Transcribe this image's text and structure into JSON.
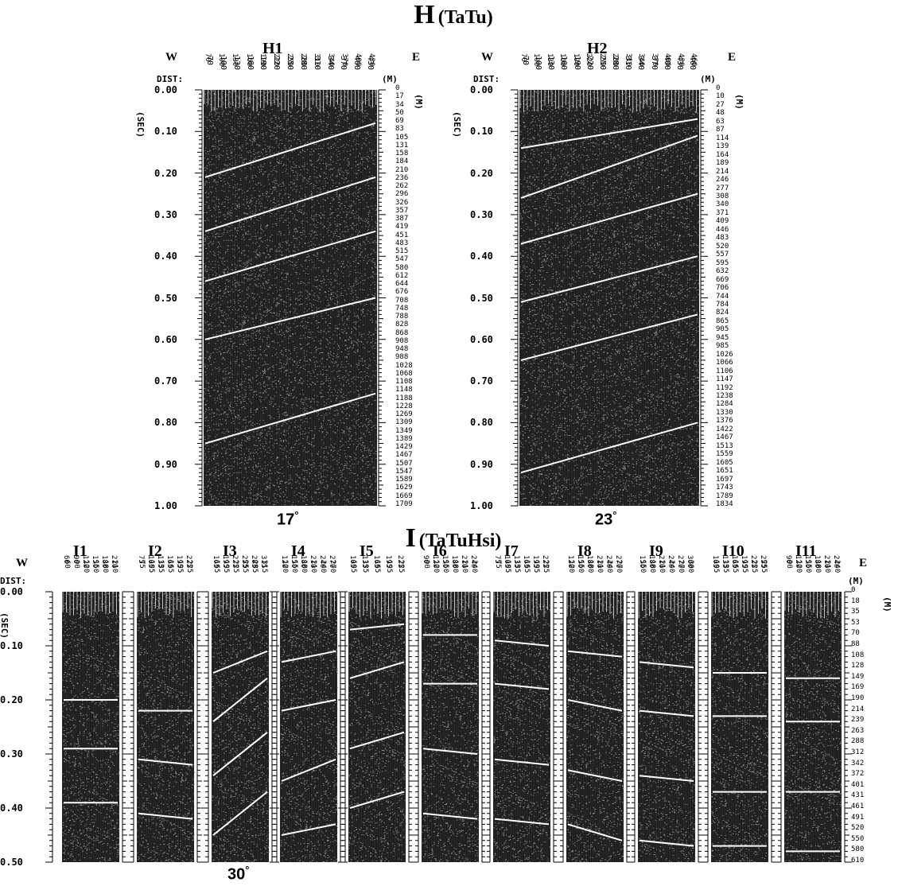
{
  "top": {
    "title": "H",
    "subtitle": "(TaTu)",
    "panels": [
      {
        "id": "H1",
        "label": "H1",
        "dist": [
          "70",
          "100",
          "130",
          "160",
          "190",
          "220",
          "250",
          "280",
          "310",
          "340",
          "370",
          "400",
          "430"
        ],
        "time_ticks": [
          "0.00",
          "0.10",
          "0.20",
          "0.30",
          "0.40",
          "0.50",
          "0.60",
          "0.70",
          "0.80",
          "0.90",
          "1.00"
        ],
        "depths": [
          "0",
          "17",
          "34",
          "50",
          "69",
          "83",
          "105",
          "131",
          "158",
          "184",
          "210",
          "236",
          "262",
          "296",
          "326",
          "357",
          "387",
          "419",
          "451",
          "483",
          "515",
          "547",
          "580",
          "612",
          "644",
          "676",
          "708",
          "748",
          "788",
          "828",
          "868",
          "908",
          "948",
          "988",
          "1028",
          "1068",
          "1108",
          "1148",
          "1188",
          "1228",
          "1269",
          "1309",
          "1349",
          "1389",
          "1429",
          "1467",
          "1507",
          "1547",
          "1589",
          "1629",
          "1669",
          "1709"
        ],
        "reflectors": [
          [
            0.21,
            0.08
          ],
          [
            0.34,
            0.21
          ],
          [
            0.46,
            0.34
          ],
          [
            0.6,
            0.5
          ],
          [
            0.85,
            0.73
          ]
        ],
        "angle": "17"
      },
      {
        "id": "H2",
        "label": "H2",
        "dist": [
          "70",
          "100",
          "130",
          "160",
          "190",
          "220",
          "250",
          "280",
          "310",
          "340",
          "370",
          "400",
          "430",
          "460"
        ],
        "time_ticks": [
          "0.00",
          "0.10",
          "0.20",
          "0.30",
          "0.40",
          "0.50",
          "0.60",
          "0.70",
          "0.80",
          "0.90",
          "1.00"
        ],
        "depths": [
          "0",
          "10",
          "27",
          "48",
          "63",
          "87",
          "114",
          "139",
          "164",
          "189",
          "214",
          "246",
          "277",
          "308",
          "340",
          "371",
          "409",
          "446",
          "483",
          "520",
          "557",
          "595",
          "632",
          "669",
          "706",
          "744",
          "784",
          "824",
          "865",
          "905",
          "945",
          "985",
          "1026",
          "1066",
          "1106",
          "1147",
          "1192",
          "1238",
          "1284",
          "1330",
          "1376",
          "1422",
          "1467",
          "1513",
          "1559",
          "1605",
          "1651",
          "1697",
          "1743",
          "1789",
          "1834"
        ],
        "reflectors": [
          [
            0.14,
            0.07
          ],
          [
            0.26,
            0.11
          ],
          [
            0.37,
            0.25
          ],
          [
            0.51,
            0.4
          ],
          [
            0.65,
            0.54
          ],
          [
            0.92,
            0.8
          ]
        ],
        "angle": "23"
      }
    ]
  },
  "bottom": {
    "title": "I",
    "subtitle": "(TaTuHsi)",
    "time_ticks": [
      "0.00",
      "0.10",
      "0.20",
      "0.30",
      "0.40",
      "0.50"
    ],
    "depths": [
      "0",
      "18",
      "35",
      "53",
      "70",
      "88",
      "108",
      "128",
      "149",
      "169",
      "190",
      "214",
      "239",
      "263",
      "288",
      "312",
      "342",
      "372",
      "401",
      "431",
      "461",
      "491",
      "520",
      "550",
      "580",
      "610"
    ],
    "angle": "30",
    "panels": [
      {
        "label": "I1",
        "dist": [
          "60",
          "90",
          "120",
          "150",
          "180",
          "210"
        ],
        "reflectors": [
          [
            0.2,
            0.2
          ],
          [
            0.29,
            0.29
          ],
          [
            0.39,
            0.39
          ]
        ]
      },
      {
        "label": "I2",
        "dist": [
          "75",
          "105",
          "135",
          "165",
          "195",
          "225"
        ],
        "reflectors": [
          [
            0.22,
            0.22
          ],
          [
            0.31,
            0.32
          ],
          [
            0.41,
            0.42
          ]
        ]
      },
      {
        "label": "I3",
        "dist": [
          "165",
          "195",
          "225",
          "255",
          "285",
          "315"
        ],
        "reflectors": [
          [
            0.15,
            0.11
          ],
          [
            0.24,
            0.16
          ],
          [
            0.34,
            0.26
          ],
          [
            0.45,
            0.37
          ]
        ]
      },
      {
        "label": "I4",
        "dist": [
          "120",
          "150",
          "180",
          "210",
          "240",
          "270"
        ],
        "reflectors": [
          [
            0.13,
            0.11
          ],
          [
            0.22,
            0.2
          ],
          [
            0.35,
            0.31
          ],
          [
            0.45,
            0.43
          ]
        ]
      },
      {
        "label": "I5",
        "dist": [
          "105",
          "135",
          "165",
          "195",
          "225"
        ],
        "reflectors": [
          [
            0.07,
            0.06
          ],
          [
            0.16,
            0.13
          ],
          [
            0.29,
            0.26
          ],
          [
            0.4,
            0.37
          ]
        ]
      },
      {
        "label": "I6",
        "dist": [
          "90",
          "120",
          "150",
          "180",
          "210",
          "240"
        ],
        "reflectors": [
          [
            0.08,
            0.08
          ],
          [
            0.17,
            0.17
          ],
          [
            0.29,
            0.3
          ],
          [
            0.41,
            0.42
          ]
        ]
      },
      {
        "label": "I7",
        "dist": [
          "75",
          "105",
          "135",
          "165",
          "195",
          "225"
        ],
        "reflectors": [
          [
            0.09,
            0.1
          ],
          [
            0.17,
            0.18
          ],
          [
            0.31,
            0.32
          ],
          [
            0.42,
            0.43
          ]
        ]
      },
      {
        "label": "I8",
        "dist": [
          "120",
          "150",
          "180",
          "210",
          "240",
          "270"
        ],
        "reflectors": [
          [
            0.11,
            0.12
          ],
          [
            0.2,
            0.22
          ],
          [
            0.33,
            0.35
          ],
          [
            0.43,
            0.46
          ]
        ]
      },
      {
        "label": "I9",
        "dist": [
          "150",
          "180",
          "210",
          "240",
          "270",
          "300"
        ],
        "reflectors": [
          [
            0.13,
            0.14
          ],
          [
            0.22,
            0.23
          ],
          [
            0.34,
            0.35
          ],
          [
            0.46,
            0.47
          ]
        ]
      },
      {
        "label": "I10",
        "dist": [
          "105",
          "135",
          "165",
          "195",
          "225",
          "255"
        ],
        "reflectors": [
          [
            0.15,
            0.15
          ],
          [
            0.23,
            0.23
          ],
          [
            0.37,
            0.37
          ],
          [
            0.47,
            0.47
          ]
        ]
      },
      {
        "label": "I11",
        "dist": [
          "90",
          "120",
          "150",
          "180",
          "210",
          "240"
        ],
        "reflectors": [
          [
            0.16,
            0.16
          ],
          [
            0.24,
            0.24
          ],
          [
            0.37,
            0.37
          ],
          [
            0.48,
            0.48
          ]
        ]
      }
    ]
  },
  "labels": {
    "west": "W",
    "east": "E",
    "dist": "DIST:",
    "unit_m": "(M)",
    "unit_sec": "(SEC)",
    "unit_m_v": "(M)",
    "deg": "°"
  }
}
